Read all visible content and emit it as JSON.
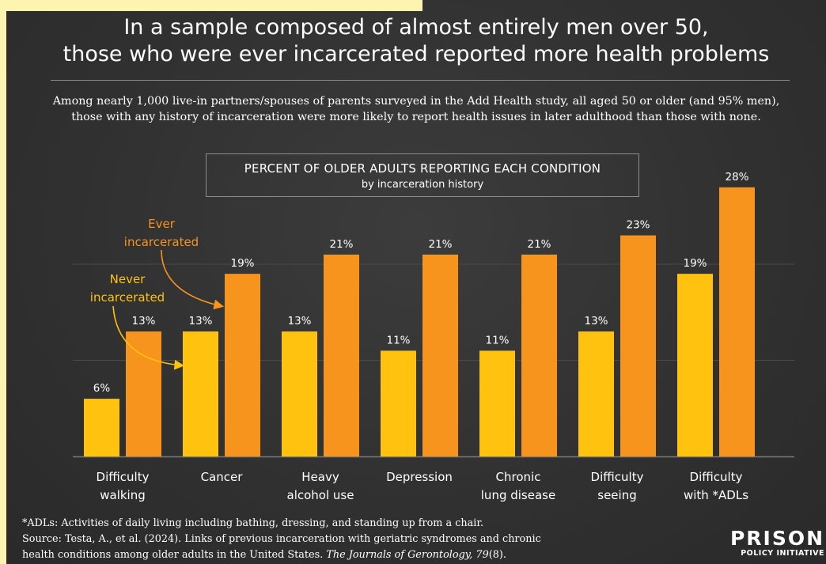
{
  "header": {
    "title_line1": "In a sample composed of almost entirely men over 50,",
    "title_line2": "those who were ever incarcerated reported more health problems",
    "subtitle_line1": "Among nearly 1,000 live-in partners/spouses of parents surveyed in the Add Health study, all aged 50 or older (and 95% men),",
    "subtitle_line2": "those with any history of incarceration were more likely to report health issues in later adulthood than those with none."
  },
  "chart_data": {
    "type": "bar",
    "title": "PERCENT OF OLDER ADULTS REPORTING EACH CONDITION",
    "subtitle": "by incarceration history",
    "categories": [
      [
        "Difficulty",
        "walking"
      ],
      [
        "Cancer"
      ],
      [
        "Heavy",
        "alcohol use"
      ],
      [
        "Depression"
      ],
      [
        "Chronic",
        "lung disease"
      ],
      [
        "Difficulty",
        "seeing"
      ],
      [
        "Difficulty",
        "with *ADLs"
      ]
    ],
    "series": [
      {
        "name": "Never incarcerated",
        "values": [
          6,
          13,
          13,
          11,
          11,
          13,
          19
        ],
        "color": "#ffc20e"
      },
      {
        "name": "Ever incarcerated",
        "values": [
          13,
          19,
          21,
          21,
          21,
          23,
          28
        ],
        "color": "#f7941d"
      }
    ],
    "value_suffix": "%",
    "ylim": [
      0,
      30
    ],
    "grid": true,
    "annotations": [
      {
        "text": [
          "Ever",
          "incarcerated"
        ],
        "color": "#f7941d"
      },
      {
        "text": [
          "Never",
          "incarcerated"
        ],
        "color": "#ffc20e"
      }
    ]
  },
  "footer": {
    "note": "*ADLs: Activities of daily living including bathing, dressing, and standing up from a chair.",
    "source_line1": "Source: Testa, A., et al. (2024). Links of previous incarceration with geriatric syndromes and chronic",
    "source_plain": "health conditions among older adults in the United States. ",
    "source_journal": "The Journals of Gerontology, 79",
    "source_tail": "(8)."
  },
  "logo": {
    "top": "PRISON",
    "bottom": "POLICY INITIATIVE"
  },
  "colors": {
    "background": "#333333",
    "never": "#ffc20e",
    "ever": "#f7941d",
    "text": "#ffffff"
  }
}
